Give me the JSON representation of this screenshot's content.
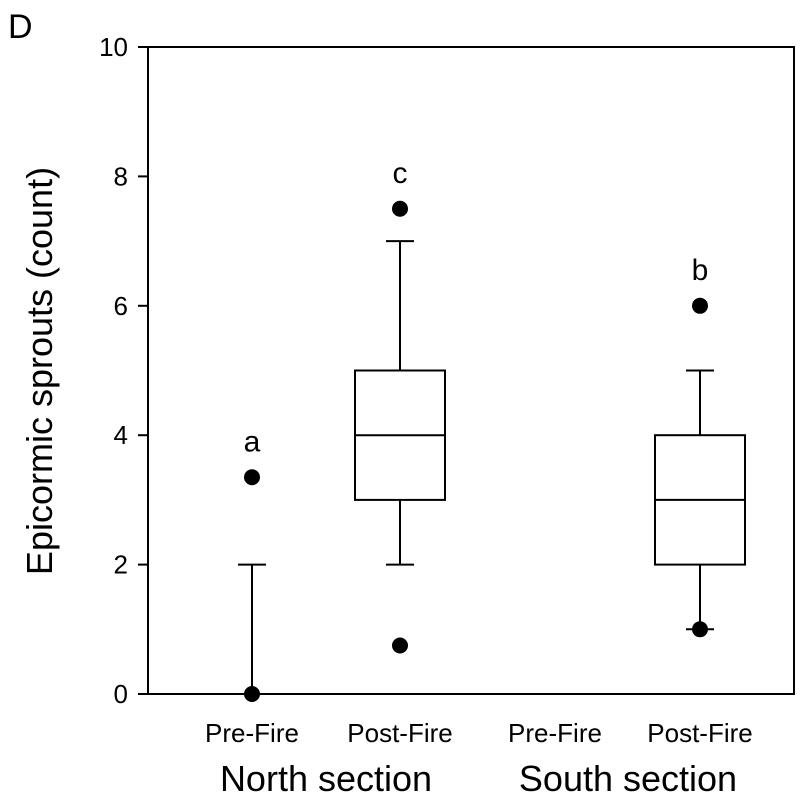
{
  "panel_label": "D",
  "chart_data": {
    "type": "box",
    "ylabel": "Epicormic sprouts (count)",
    "ylim": [
      0,
      10
    ],
    "yticks": [
      0,
      2,
      4,
      6,
      8,
      10
    ],
    "groups": [
      "North section",
      "South section"
    ],
    "categories": [
      "Pre-Fire",
      "Post-Fire",
      "Pre-Fire",
      "Post-Fire"
    ],
    "boxes": [
      {
        "group": "North section",
        "category": "Pre-Fire",
        "whisker_low": 0,
        "q1": 0,
        "median": 0,
        "q3": 0,
        "whisker_high": 2,
        "outliers": [
          3.35,
          0
        ],
        "letter": "a"
      },
      {
        "group": "North section",
        "category": "Post-Fire",
        "whisker_low": 2,
        "q1": 3,
        "median": 4,
        "q3": 5,
        "whisker_high": 7,
        "outliers": [
          7.5,
          0.75
        ],
        "letter": "c"
      },
      {
        "group": "South section",
        "category": "Pre-Fire",
        "whisker_low": null,
        "q1": null,
        "median": null,
        "q3": null,
        "whisker_high": null,
        "outliers": [],
        "letter": ""
      },
      {
        "group": "South section",
        "category": "Post-Fire",
        "whisker_low": 1,
        "q1": 2,
        "median": 3,
        "q3": 4,
        "whisker_high": 5,
        "outliers": [
          6,
          1
        ],
        "letter": "b"
      }
    ]
  }
}
